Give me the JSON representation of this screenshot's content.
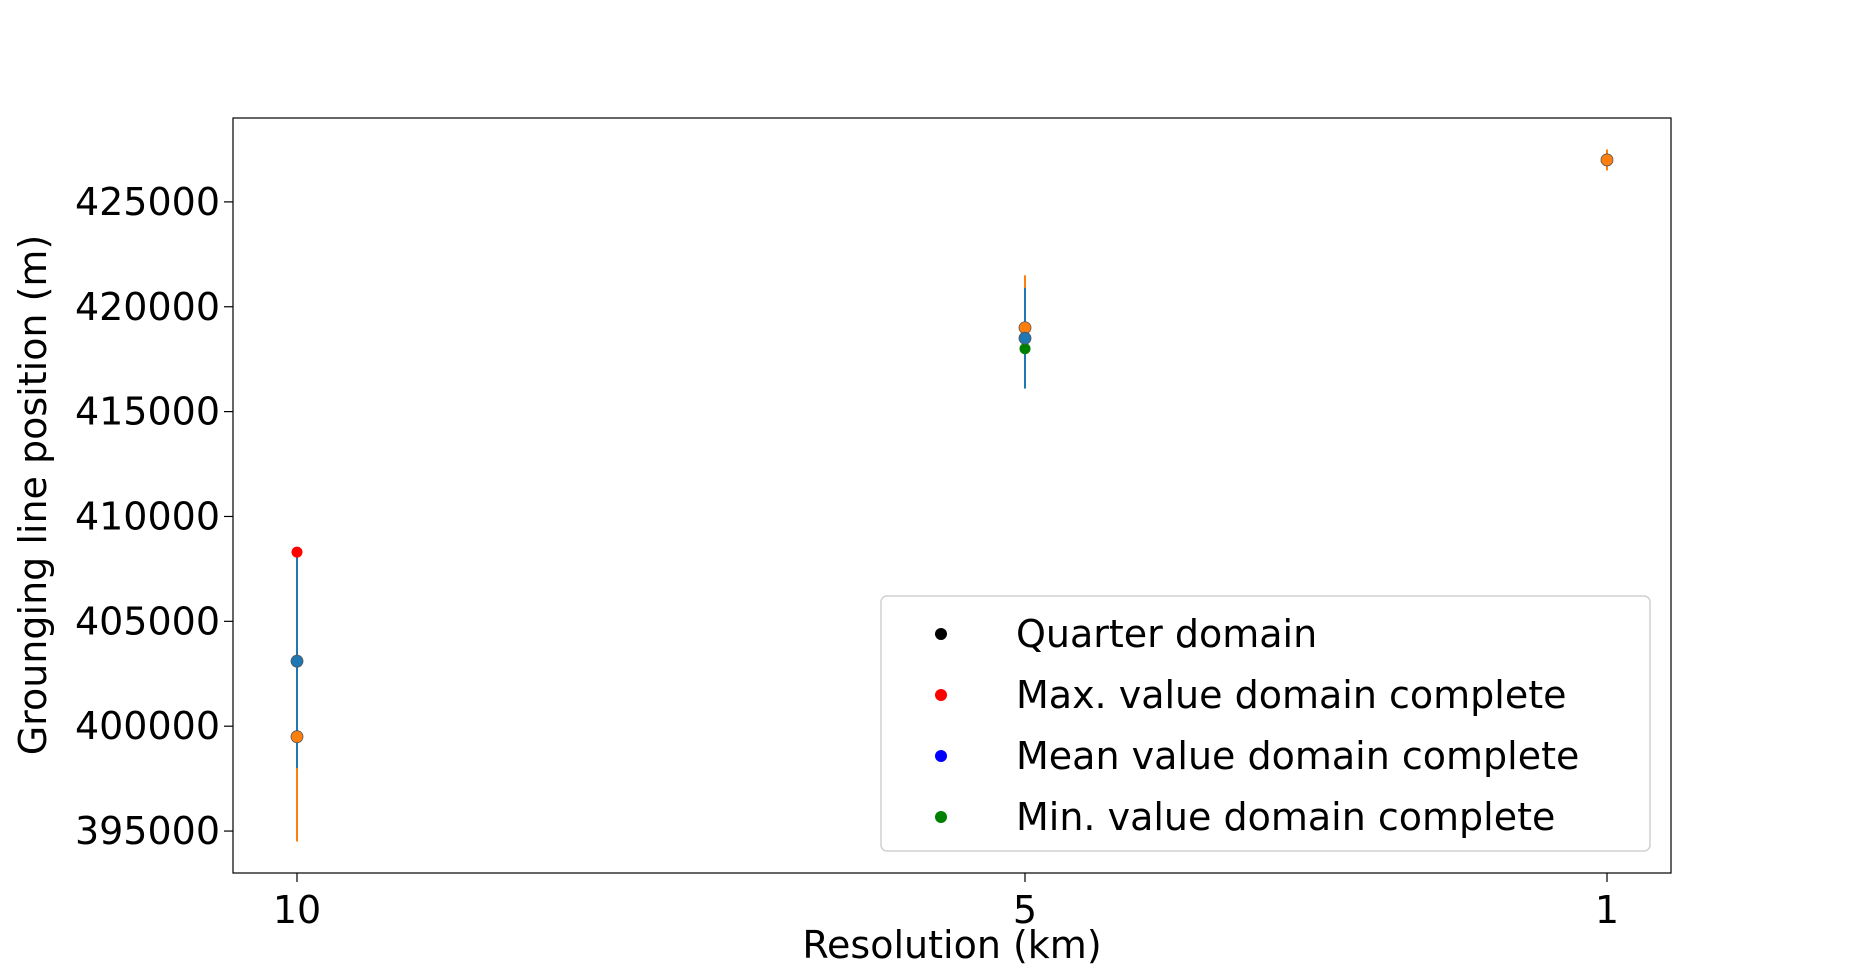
{
  "chart_data": {
    "type": "scatter",
    "title": "",
    "xlabel": "Resolution (km)",
    "ylabel": "Grounging line position (m)",
    "x_categories": [
      "10",
      "5",
      "1"
    ],
    "ylim": [
      393000,
      429000
    ],
    "y_ticks": [
      395000,
      400000,
      405000,
      410000,
      415000,
      420000,
      425000
    ],
    "grid": false,
    "legend_position": "lower-right",
    "series": [
      {
        "name": "Quarter domain",
        "color": "#000000",
        "points": [
          {
            "x": "10",
            "y": 399500,
            "err_low": 394500,
            "err_high": 404500
          },
          {
            "x": "5",
            "y": 419000,
            "err_low": 416500,
            "err_high": 421500
          },
          {
            "x": "1",
            "y": 427000,
            "err_low": 426500,
            "err_high": 427500
          }
        ]
      },
      {
        "name": "Max. value domain complete",
        "color": "#ff0000",
        "points": [
          {
            "x": "10",
            "y": 408300
          },
          {
            "x": "5",
            "y": 419000
          }
        ]
      },
      {
        "name": "Mean value domain complete",
        "color": "#0000ff",
        "points": [
          {
            "x": "10",
            "y": 403100,
            "err_low": 398000,
            "err_high": 408200
          },
          {
            "x": "5",
            "y": 418500,
            "err_low": 416100,
            "err_high": 420900
          }
        ]
      },
      {
        "name": "Min. value domain complete",
        "color": "#008000",
        "points": [
          {
            "x": "5",
            "y": 418000
          }
        ]
      }
    ],
    "overlay_points": [
      {
        "x": "10",
        "y": 399500,
        "face": "#ff7f0e"
      },
      {
        "x": "10",
        "y": 403100,
        "face": "#1f77b4"
      },
      {
        "x": "5",
        "y": 419000,
        "face": "#ff7f0e"
      },
      {
        "x": "5",
        "y": 418500,
        "face": "#1f77b4"
      },
      {
        "x": "1",
        "y": 427000,
        "face": "#ff7f0e"
      }
    ]
  }
}
